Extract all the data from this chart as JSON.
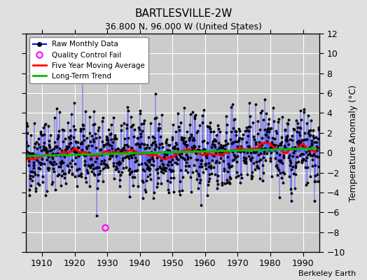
{
  "title": "BARTLESVILLE-2W",
  "subtitle": "36.800 N, 96.000 W (United States)",
  "credit": "Berkeley Earth",
  "ylabel": "Temperature Anomaly (°C)",
  "xlim": [
    1905,
    1995
  ],
  "ylim": [
    -10,
    12
  ],
  "yticks": [
    -10,
    -8,
    -6,
    -4,
    -2,
    0,
    2,
    4,
    6,
    8,
    10,
    12
  ],
  "xticks": [
    1910,
    1920,
    1930,
    1940,
    1950,
    1960,
    1970,
    1980,
    1990
  ],
  "fig_bg_color": "#e0e0e0",
  "plot_bg_color": "#cccccc",
  "grid_color": "#ffffff",
  "bar_color": "#5555ff",
  "dot_color": "#000000",
  "ma_color": "#ff0000",
  "trend_color": "#00bb00",
  "qc_color": "#ff00ff",
  "qc_year": 1929,
  "qc_val": -7.5,
  "seed": 42,
  "bar_alpha": 0.55,
  "bar_linewidth": 1.2,
  "monthly_std": 2.5,
  "trend_slope": 0.004,
  "trend_intercept": -0.2,
  "ma_window": 60
}
